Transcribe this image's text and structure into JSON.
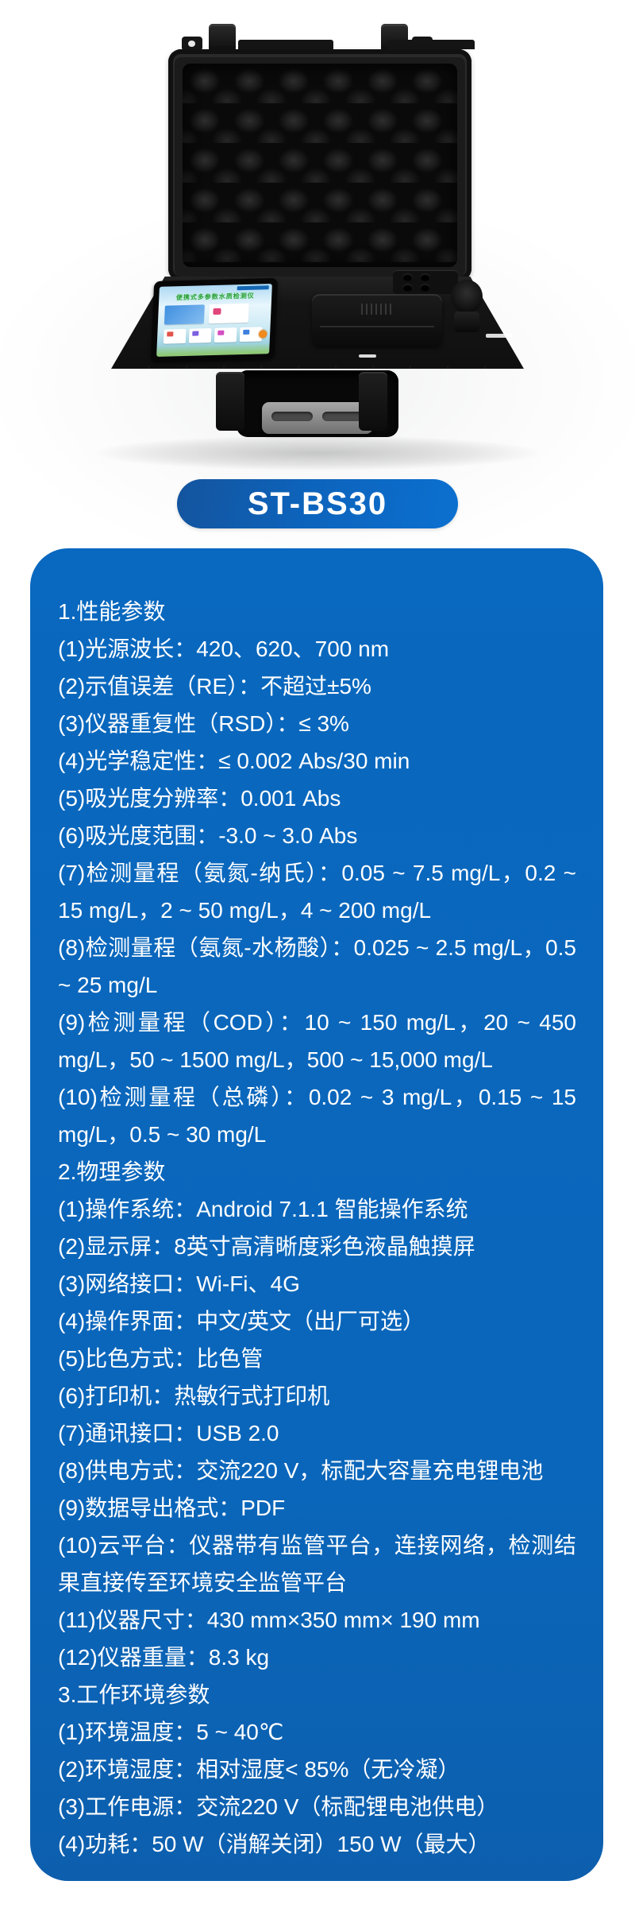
{
  "theme": {
    "panel_blue": "#0968bf",
    "badge_gradient_left": "#14549e",
    "badge_gradient_right": "#0c70d0",
    "text_color": "#ffffff"
  },
  "product": {
    "model_badge": "ST-BS30",
    "device_screen_title": "便携式多参数水质检测仪"
  },
  "specs": {
    "sections": [
      {
        "title": "1.性能参数",
        "items": [
          "(1)光源波长：420、620、700 nm",
          "(2)示值误差（RE）：不超过±5%",
          "(3)仪器重复性（RSD）：≤ 3%",
          "(4)光学稳定性：≤ 0.002 Abs/30 min",
          "(5)吸光度分辨率：0.001 Abs",
          "(6)吸光度范围：-3.0 ~ 3.0 Abs",
          "(7)检测量程（氨氮-纳氏）：0.05 ~ 7.5 mg/L，0.2 ~ 15 mg/L，2 ~ 50 mg/L，4 ~ 200 mg/L",
          "(8)检测量程（氨氮-水杨酸）：0.025 ~ 2.5 mg/L，0.5 ~ 25 mg/L",
          "(9)检测量程（COD）：10 ~ 150 mg/L，20 ~ 450 mg/L，50 ~ 1500 mg/L，500 ~ 15,000 mg/L",
          "(10)检测量程（总磷）：0.02 ~ 3 mg/L，0.15 ~ 15 mg/L，0.5 ~ 30 mg/L"
        ]
      },
      {
        "title": "2.物理参数",
        "items": [
          "(1)操作系统：Android 7.1.1 智能操作系统",
          "(2)显示屏：8英寸高清晰度彩色液晶触摸屏",
          "(3)网络接口：Wi-Fi、4G",
          "(4)操作界面：中文/英文（出厂可选）",
          "(5)比色方式：比色管",
          "(6)打印机：热敏行式打印机",
          "(7)通讯接口：USB 2.0",
          "(8)供电方式：交流220 V，标配大容量充电锂电池",
          "(9)数据导出格式：PDF",
          "(10)云平台：仪器带有监管平台，连接网络，检测结果直接传至环境安全监管平台",
          "(11)仪器尺寸：430 mm×350 mm× 190 mm",
          "(12)仪器重量：8.3 kg"
        ]
      },
      {
        "title": "3.工作环境参数",
        "items": [
          "(1)环境温度：5 ~ 40℃",
          "(2)环境湿度：相对湿度< 85%（无冷凝）",
          "(3)工作电源：交流220 V（标配锂电池供电）",
          "(4)功耗：50 W（消解关闭）150 W（最大）"
        ]
      }
    ]
  }
}
